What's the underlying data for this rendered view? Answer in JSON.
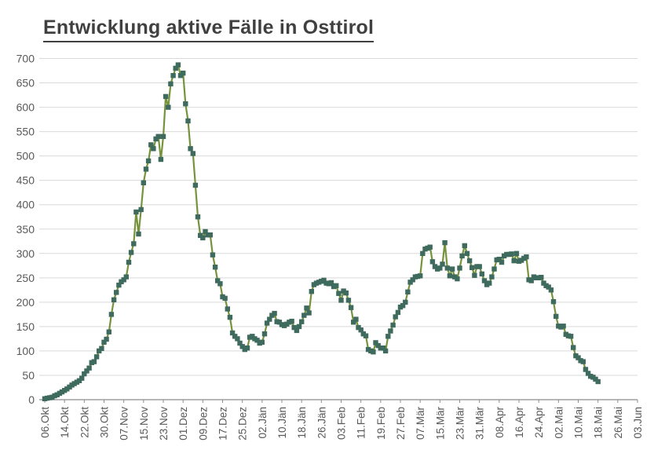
{
  "title": "Entwicklung aktive Fälle in Osttirol",
  "chart_data": {
    "type": "line",
    "title": "Entwicklung aktive Fälle in Osttirol",
    "xlabel": "",
    "ylabel": "",
    "ylim": [
      0,
      700
    ],
    "y_ticks": [
      0,
      50,
      100,
      150,
      200,
      250,
      300,
      350,
      400,
      450,
      500,
      550,
      600,
      650,
      700
    ],
    "grid": "horizontal",
    "legend_position": "none",
    "x_start_date": "06.Okt",
    "x_tick_interval_days": 8,
    "x_total_days": 240,
    "x_tick_labels": [
      "06.Okt",
      "14.Okt",
      "22.Okt",
      "30.Okt",
      "07.Nov",
      "15.Nov",
      "23.Nov",
      "01.Dez",
      "09.Dez",
      "17.Dez",
      "25.Dez",
      "02.Jän",
      "10.Jän",
      "18.Jän",
      "26.Jän",
      "03.Feb",
      "11.Feb",
      "19.Feb",
      "27.Feb",
      "07.Mär",
      "15.Mär",
      "23.Mär",
      "31.Mär",
      "08.Apr",
      "16.Apr",
      "24.Apr",
      "02.Mai",
      "10.Mai",
      "18.Mai",
      "26.Mai",
      "03.Jun"
    ],
    "series": [
      {
        "name": "aktive Fälle",
        "marker": "square",
        "start": "06.Okt",
        "end": "18.Mai",
        "daily_values": [
          2,
          3,
          4,
          5,
          8,
          10,
          13,
          16,
          19,
          22,
          26,
          30,
          33,
          36,
          39,
          44,
          53,
          59,
          65,
          76,
          78,
          88,
          100,
          105,
          118,
          124,
          139,
          175,
          205,
          220,
          235,
          242,
          246,
          252,
          282,
          302,
          320,
          385,
          340,
          390,
          445,
          473,
          490,
          523,
          515,
          535,
          540,
          493,
          540,
          622,
          600,
          648,
          665,
          680,
          687,
          665,
          670,
          607,
          572,
          515,
          505,
          440,
          375,
          337,
          332,
          345,
          338,
          338,
          297,
          272,
          244,
          238,
          211,
          208,
          186,
          169,
          137,
          130,
          125,
          116,
          109,
          103,
          106,
          128,
          130,
          125,
          122,
          116,
          118,
          135,
          157,
          165,
          173,
          177,
          160,
          159,
          154,
          152,
          155,
          159,
          161,
          148,
          142,
          150,
          160,
          173,
          188,
          178,
          222,
          236,
          239,
          241,
          243,
          245,
          239,
          238,
          240,
          232,
          234,
          218,
          204,
          223,
          219,
          204,
          189,
          159,
          165,
          148,
          143,
          135,
          131,
          103,
          100,
          98,
          117,
          111,
          106,
          106,
          100,
          130,
          141,
          153,
          170,
          179,
          190,
          193,
          200,
          221,
          241,
          246,
          252,
          253,
          254,
          300,
          309,
          311,
          313,
          283,
          273,
          268,
          270,
          278,
          322,
          270,
          254,
          268,
          252,
          248,
          270,
          295,
          316,
          300,
          285,
          271,
          255,
          273,
          273,
          258,
          244,
          236,
          239,
          252,
          268,
          287,
          288,
          282,
          295,
          298,
          298,
          299,
          285,
          300,
          284,
          286,
          290,
          293,
          246,
          244,
          252,
          250,
          250,
          251,
          239,
          234,
          231,
          225,
          201,
          171,
          151,
          149,
          151,
          134,
          131,
          130,
          107,
          90,
          86,
          80,
          78,
          62,
          54,
          48,
          46,
          42,
          37
        ]
      }
    ],
    "colors": {
      "line": "#76933C",
      "marker": "#3F6A5E",
      "gridline": "#D9D9D9",
      "axis": "#8C8C8C",
      "tick_text": "#595959",
      "title_text": "#404040",
      "background": "#FFFFFF"
    }
  }
}
